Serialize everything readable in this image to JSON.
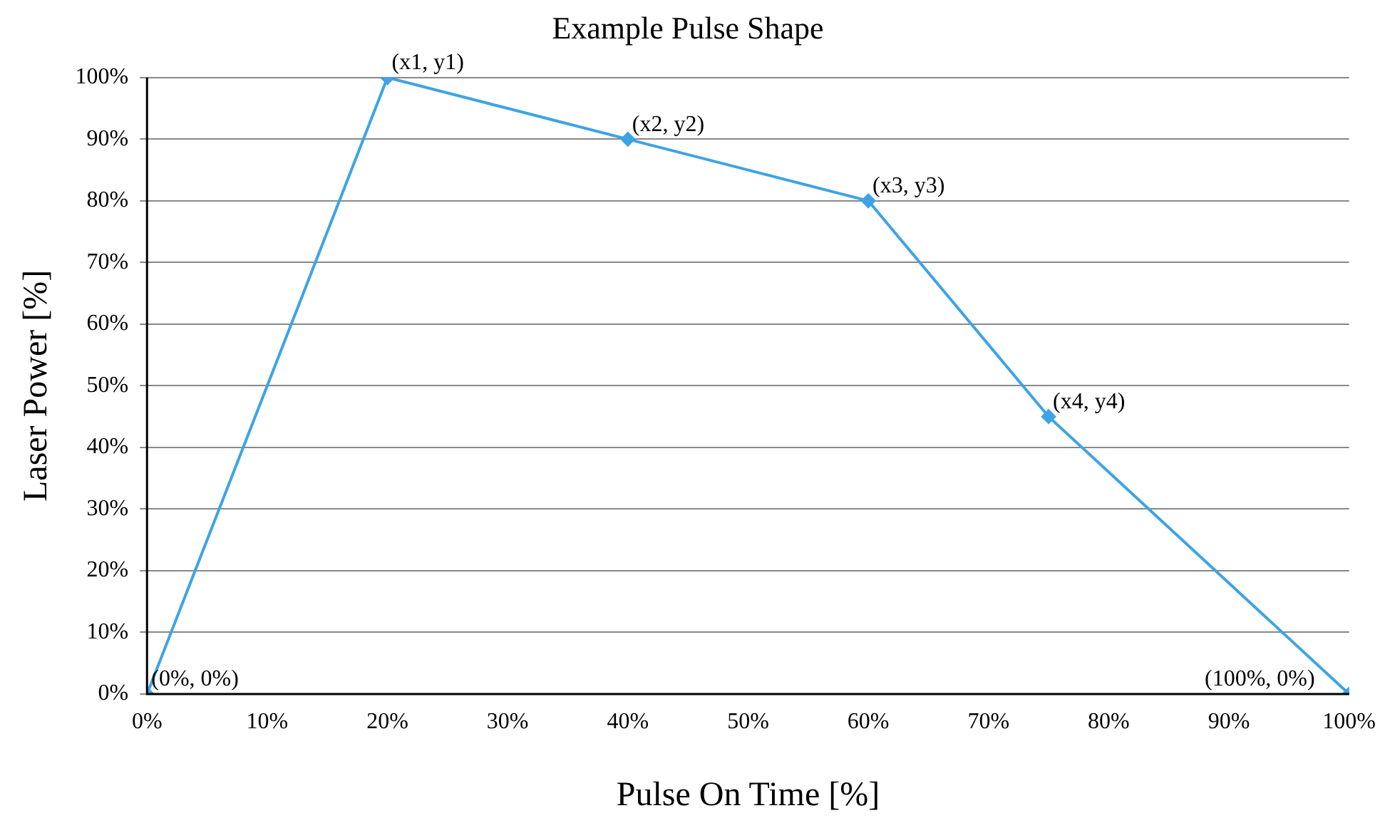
{
  "chart_data": {
    "type": "line",
    "title": "Example Pulse Shape",
    "xlabel": "Pulse On Time [%]",
    "ylabel": "Laser Power [%]",
    "x": [
      0,
      20,
      40,
      60,
      75,
      100
    ],
    "series": [
      {
        "color": "#3ea3e6",
        "values": [
          0,
          100,
          90,
          80,
          45,
          0
        ]
      }
    ],
    "xlim": [
      0,
      100
    ],
    "ylim": [
      0,
      100
    ],
    "xticks": [
      {
        "value": 0,
        "label": "0%"
      },
      {
        "value": 10,
        "label": "10%"
      },
      {
        "value": 20,
        "label": "20%"
      },
      {
        "value": 30,
        "label": "30%"
      },
      {
        "value": 40,
        "label": "40%"
      },
      {
        "value": 50,
        "label": "50%"
      },
      {
        "value": 60,
        "label": "60%"
      },
      {
        "value": 70,
        "label": "70%"
      },
      {
        "value": 80,
        "label": "80%"
      },
      {
        "value": 90,
        "label": "90%"
      },
      {
        "value": 100,
        "label": "100%"
      }
    ],
    "yticks": [
      {
        "value": 0,
        "label": "0%"
      },
      {
        "value": 10,
        "label": "10%"
      },
      {
        "value": 20,
        "label": "20%"
      },
      {
        "value": 30,
        "label": "30%"
      },
      {
        "value": 40,
        "label": "40%"
      },
      {
        "value": 50,
        "label": "50%"
      },
      {
        "value": 60,
        "label": "60%"
      },
      {
        "value": 70,
        "label": "70%"
      },
      {
        "value": 80,
        "label": "80%"
      },
      {
        "value": 90,
        "label": "90%"
      },
      {
        "value": 100,
        "label": "100%"
      }
    ],
    "annotations": [
      {
        "text": "(0%, 0%)",
        "x": 0,
        "y": 0
      },
      {
        "text": "(x1, y1)",
        "x": 20,
        "y": 100
      },
      {
        "text": "(x2, y2)",
        "x": 40,
        "y": 90
      },
      {
        "text": "(x3, y3)",
        "x": 60,
        "y": 80
      },
      {
        "text": "(x4, y4)",
        "x": 75,
        "y": 45
      },
      {
        "text": "(100%, 0%)",
        "x": 100,
        "y": 0
      }
    ],
    "grid": "y",
    "marker": "diamond",
    "line_style": "solid",
    "legend": false
  }
}
